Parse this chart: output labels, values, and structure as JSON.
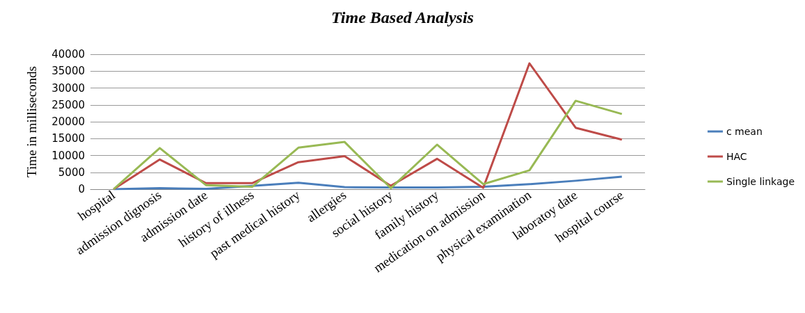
{
  "chart_data": {
    "type": "line",
    "title": "Time Based Analysis",
    "ylabel": "Time in milliseconds",
    "categories": [
      "hospital",
      "admission dignosis",
      "admission date",
      "history of illness",
      "past medical history",
      "allergies",
      "social history",
      "family history",
      "medication on admission",
      "physical examination",
      "laboratoy date",
      "hospital course"
    ],
    "series": [
      {
        "name": "c mean",
        "color": "#4a7ebb",
        "values": [
          0,
          300,
          100,
          1000,
          1900,
          600,
          500,
          500,
          700,
          1500,
          2500,
          3700
        ]
      },
      {
        "name": "HAC",
        "color": "#be4b48",
        "values": [
          0,
          8800,
          1800,
          1800,
          8000,
          9800,
          1000,
          9000,
          400,
          37300,
          18200,
          14700
        ]
      },
      {
        "name": "Single linkage",
        "color": "#98b954",
        "values": [
          0,
          12200,
          1200,
          700,
          12300,
          14000,
          300,
          13200,
          1500,
          5600,
          26200,
          22300
        ]
      }
    ],
    "ylim": [
      0,
      40000
    ],
    "yticks": [
      0,
      5000,
      10000,
      15000,
      20000,
      25000,
      30000,
      35000,
      40000
    ],
    "grid": "y",
    "legend": "right",
    "marker": "none",
    "line_style": "solid"
  }
}
